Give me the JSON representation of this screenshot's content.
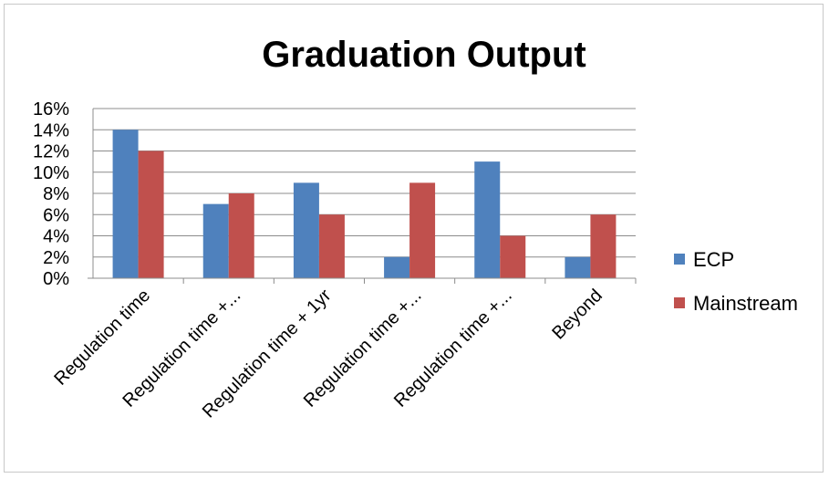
{
  "chart_data": {
    "type": "bar",
    "title": "Graduation Output",
    "categories": [
      "Regulation time",
      "Regulation time +...",
      "Regulation time + 1yr",
      "Regulation time +...",
      "Regulation time +...",
      "Beyond"
    ],
    "series": [
      {
        "name": "ECP",
        "color": "#4f81bd",
        "values": [
          14,
          7,
          9,
          2,
          11,
          2
        ]
      },
      {
        "name": "Mainstream",
        "color": "#c0504d",
        "values": [
          12,
          8,
          6,
          9,
          4,
          6
        ]
      }
    ],
    "ylim": [
      0,
      16
    ],
    "ytick_step": 2,
    "ytick_labels": [
      "0%",
      "2%",
      "4%",
      "6%",
      "8%",
      "10%",
      "12%",
      "14%",
      "16%"
    ],
    "y_unit": "%",
    "grid": true,
    "legend_position": "right"
  }
}
